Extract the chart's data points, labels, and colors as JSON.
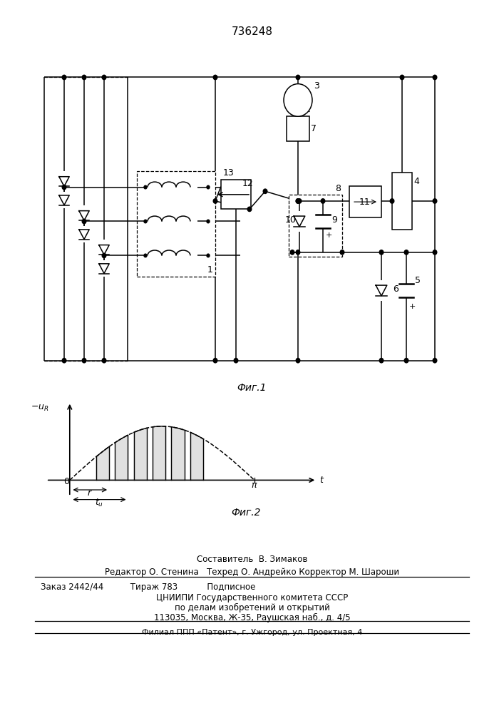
{
  "title": "736248",
  "fig1_label": "Фиг.1",
  "fig2_label": "Фиг.2",
  "footer_line1": "Составитель  В. Зимаков",
  "footer_line2": "Редактор О. Стенина   Техред О. Андрейко Корректор М. Шароши",
  "footer_line3": "Заказ 2442/44          Тираж 783           Подписное",
  "footer_line4": "ЦНИИПИ Государственного комитета СССР",
  "footer_line5": "по делам изобретений и открытий",
  "footer_line6": "113035, Москва, Ж-35, Раушская наб., д. 4/5",
  "footer_line7": "Филиал ППП «Патент», г. Ужгород, ул. Проектная, 4"
}
